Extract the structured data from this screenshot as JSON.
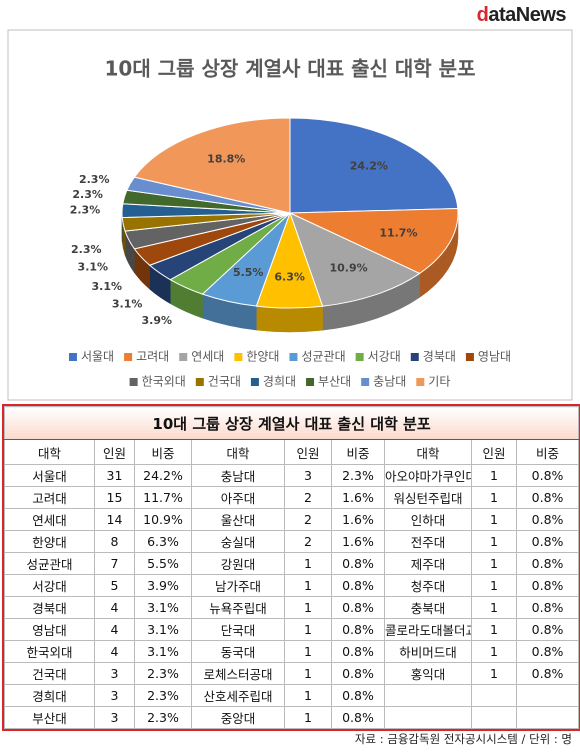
{
  "logo": "dataNews",
  "chart_data": {
    "type": "pie",
    "title": "10대 그룹 상장 계열사 대표 출신 대학 분포",
    "categories": [
      "서울대",
      "고려대",
      "연세대",
      "한양대",
      "성균관대",
      "서강대",
      "경북대",
      "영남대",
      "한국외대",
      "건국대",
      "경희대",
      "부산대",
      "충남대",
      "기타"
    ],
    "values": [
      24.2,
      11.7,
      10.9,
      6.3,
      5.5,
      3.9,
      3.1,
      3.1,
      3.1,
      2.3,
      2.3,
      2.3,
      2.3,
      18.8
    ],
    "value_labels": [
      "24.2%",
      "11.7%",
      "10.9%",
      "6.3%",
      "5.5%",
      "3.9%",
      "3.1%",
      "3.1%",
      "3.1%",
      "2.3%",
      "2.3%",
      "2.3%",
      "2.3%",
      "18.8%"
    ],
    "colors": [
      "#4472c4",
      "#ed7d31",
      "#a5a5a5",
      "#ffc000",
      "#5b9bd5",
      "#70ad47",
      "#264478",
      "#9e480e",
      "#636363",
      "#997300",
      "#255e91",
      "#43682b",
      "#698ed0",
      "#f1975a"
    ],
    "legend": "bottom"
  },
  "table": {
    "title": "10대 그룹 상장 계열사 대표 출신 대학 분포",
    "groups": [
      {
        "header": [
          "대학",
          "인원",
          "비중"
        ],
        "rows": [
          [
            "서울대",
            31,
            "24.2%"
          ],
          [
            "고려대",
            15,
            "11.7%"
          ],
          [
            "연세대",
            14,
            "10.9%"
          ],
          [
            "한양대",
            8,
            "6.3%"
          ],
          [
            "성균관대",
            7,
            "5.5%"
          ],
          [
            "서강대",
            5,
            "3.9%"
          ],
          [
            "경북대",
            4,
            "3.1%"
          ],
          [
            "영남대",
            4,
            "3.1%"
          ],
          [
            "한국외대",
            4,
            "3.1%"
          ],
          [
            "건국대",
            3,
            "2.3%"
          ],
          [
            "경희대",
            3,
            "2.3%"
          ],
          [
            "부산대",
            3,
            "2.3%"
          ]
        ]
      },
      {
        "header": [
          "대학",
          "인원",
          "비중"
        ],
        "rows": [
          [
            "충남대",
            3,
            "2.3%"
          ],
          [
            "아주대",
            2,
            "1.6%"
          ],
          [
            "울산대",
            2,
            "1.6%"
          ],
          [
            "숭실대",
            2,
            "1.6%"
          ],
          [
            "강원대",
            1,
            "0.8%"
          ],
          [
            "남가주대",
            1,
            "0.8%"
          ],
          [
            "뉴욕주립대",
            1,
            "0.8%"
          ],
          [
            "단국대",
            1,
            "0.8%"
          ],
          [
            "동국대",
            1,
            "0.8%"
          ],
          [
            "로체스터공대",
            1,
            "0.8%"
          ],
          [
            "산호세주립대",
            1,
            "0.8%"
          ],
          [
            "중앙대",
            1,
            "0.8%"
          ]
        ]
      },
      {
        "header": [
          "대학",
          "인원",
          "비중"
        ],
        "rows": [
          [
            "아오야마가쿠인대",
            1,
            "0.8%"
          ],
          [
            "워싱턴주립대",
            1,
            "0.8%"
          ],
          [
            "인하대",
            1,
            "0.8%"
          ],
          [
            "전주대",
            1,
            "0.8%"
          ],
          [
            "제주대",
            1,
            "0.8%"
          ],
          [
            "청주대",
            1,
            "0.8%"
          ],
          [
            "충북대",
            1,
            "0.8%"
          ],
          [
            "콜로라도대볼더교",
            1,
            "0.8%"
          ],
          [
            "하비머드대",
            1,
            "0.8%"
          ],
          [
            "홍익대",
            1,
            "0.8%"
          ]
        ]
      }
    ]
  },
  "footer": {
    "source": "자료 : 금융감독원 전자공시시스템 / 단위 : 명"
  }
}
